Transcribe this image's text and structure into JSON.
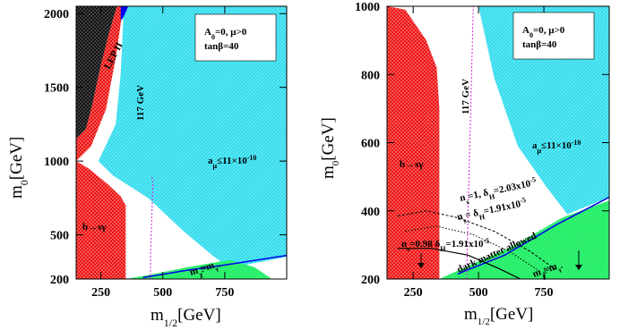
{
  "chart_data": [
    {
      "type": "area",
      "xlim": [
        150,
        1000
      ],
      "ylim": [
        200,
        2050
      ],
      "x_ticks": [
        250,
        500,
        750
      ],
      "y_ticks": [
        200,
        500,
        1000,
        1500,
        2000
      ],
      "x_tick_labels": [
        "250",
        "500",
        "750"
      ],
      "y_tick_labels": [
        "200",
        "500",
        "1000",
        "1500",
        "2000"
      ],
      "xlabel_main": "m",
      "xlabel_sub": "1/2",
      "xlabel_unit": "[GeV]",
      "ylabel_main": "m",
      "ylabel_sub": "0",
      "ylabel_unit": "[GeV]",
      "legend": {
        "line1": "A",
        "line1_sub": "0",
        "line1_rest": "=0,  μ>0",
        "line2": "tanβ=40",
        "placement": "top-right"
      },
      "colors": {
        "cyan": "#33ddee",
        "red": "#ee1111",
        "black": "#111111",
        "green": "#22ee66",
        "blue": "#0000ee",
        "magenta": "#dd22dd"
      },
      "regions": {
        "amu_cyan": [
          [
            330,
            2050
          ],
          [
            1000,
            2050
          ],
          [
            1000,
            350
          ],
          [
            770,
            275
          ],
          [
            700,
            360
          ],
          [
            580,
            530
          ],
          [
            440,
            750
          ],
          [
            300,
            900
          ],
          [
            240,
            1000
          ],
          [
            310,
            1250
          ],
          [
            330,
            1600
          ],
          [
            340,
            1950
          ]
        ],
        "stau_black": [
          [
            150,
            2050
          ],
          [
            315,
            2050
          ],
          [
            285,
            1880
          ],
          [
            250,
            1650
          ],
          [
            215,
            1380
          ],
          [
            190,
            1220
          ],
          [
            150,
            1150
          ]
        ],
        "stau_red": [
          [
            150,
            1150
          ],
          [
            190,
            1220
          ],
          [
            215,
            1380
          ],
          [
            250,
            1650
          ],
          [
            285,
            1880
          ],
          [
            315,
            2050
          ],
          [
            340,
            2050
          ],
          [
            310,
            1700
          ],
          [
            270,
            1350
          ],
          [
            210,
            1100
          ],
          [
            150,
            1000
          ]
        ],
        "bsg_red": [
          [
            150,
            1000
          ],
          [
            200,
            950
          ],
          [
            280,
            840
          ],
          [
            330,
            760
          ],
          [
            350,
            700
          ],
          [
            350,
            200
          ],
          [
            150,
            200
          ]
        ],
        "green_chargino": [
          [
            350,
            200
          ],
          [
            940,
            200
          ],
          [
            870,
            280
          ],
          [
            770,
            330
          ],
          [
            600,
            280
          ],
          [
            450,
            230
          ]
        ],
        "blue_boundary": [
          [
            420,
            210
          ],
          [
            600,
            260
          ],
          [
            770,
            300
          ],
          [
            1000,
            360
          ]
        ],
        "blue_top": [
          [
            330,
            2050
          ],
          [
            360,
            2050
          ],
          [
            345,
            1990
          ],
          [
            330,
            1950
          ]
        ],
        "higgs_line": [
          [
            450,
            200
          ],
          [
            450,
            350
          ],
          [
            455,
            600
          ],
          [
            460,
            850
          ],
          [
            455,
            900
          ]
        ]
      },
      "annotations": [
        {
          "text": "LEP II",
          "x": 235,
          "y": 1750,
          "rotate": -60
        },
        {
          "text": "117 GeV",
          "x": 420,
          "y": 1200,
          "rotate": -90
        },
        {
          "text": "b→sγ",
          "x": 170,
          "y": 600,
          "rotate": 0
        },
        {
          "text": "a",
          "sub": "μ",
          "rest": "≤11×10",
          "sup": "-10",
          "x": 810,
          "y": 900,
          "rotate": 0
        },
        {
          "text": "m",
          "sub": "χ̃",
          "rest": "≈m",
          "sub2": "τ̃",
          "x": 605,
          "y": 230,
          "rotate": -20
        }
      ]
    },
    {
      "type": "area",
      "xlim": [
        150,
        1000
      ],
      "ylim": [
        200,
        1000
      ],
      "x_ticks": [
        250,
        500,
        750
      ],
      "y_ticks": [
        200,
        400,
        600,
        800,
        1000
      ],
      "x_tick_labels": [
        "250",
        "500",
        "750"
      ],
      "y_tick_labels": [
        "200",
        "400",
        "600",
        "800",
        "1000"
      ],
      "xlabel_main": "m",
      "xlabel_sub": "1/2",
      "xlabel_unit": "[GeV]",
      "ylabel_main": "m",
      "ylabel_sub": "0",
      "ylabel_unit": "[GeV]",
      "legend": {
        "line1": "A",
        "line1_sub": "0",
        "line1_rest": "=0,  μ>0",
        "line2": "tanβ=40",
        "placement": "top-right"
      },
      "regions": {
        "amu_cyan": [
          [
            500,
            1000
          ],
          [
            1000,
            1000
          ],
          [
            1000,
            440
          ],
          [
            840,
            390
          ],
          [
            760,
            470
          ],
          [
            650,
            590
          ],
          [
            560,
            790
          ]
        ],
        "bsg_red": [
          [
            150,
            1000
          ],
          [
            220,
            990
          ],
          [
            300,
            900
          ],
          [
            340,
            820
          ],
          [
            350,
            700
          ],
          [
            350,
            200
          ],
          [
            150,
            200
          ]
        ],
        "green_chargino": [
          [
            350,
            200
          ],
          [
            1000,
            200
          ],
          [
            1000,
            430
          ],
          [
            820,
            380
          ],
          [
            640,
            300
          ],
          [
            480,
            245
          ]
        ],
        "blue_boundary": [
          [
            420,
            215
          ],
          [
            600,
            270
          ],
          [
            800,
            360
          ],
          [
            1000,
            440
          ]
        ],
        "higgs_line": [
          [
            455,
            200
          ],
          [
            460,
            400
          ],
          [
            470,
            700
          ],
          [
            480,
            1000
          ]
        ]
      },
      "curves": {
        "ns1": [
          [
            190,
            385
          ],
          [
            300,
            400
          ],
          [
            420,
            380
          ],
          [
            560,
            340
          ],
          [
            700,
            280
          ],
          [
            800,
            225
          ]
        ],
        "ns_mid": [
          [
            220,
            340
          ],
          [
            340,
            355
          ],
          [
            480,
            330
          ],
          [
            620,
            280
          ],
          [
            740,
            220
          ]
        ],
        "ns098": [
          [
            190,
            290
          ],
          [
            320,
            290
          ],
          [
            460,
            270
          ],
          [
            580,
            230
          ],
          [
            660,
            200
          ]
        ]
      },
      "annotations": [
        {
          "text": "117 GeV",
          "x": 440,
          "y": 860,
          "rotate": -90
        },
        {
          "text": "b→sγ",
          "x": 160,
          "y": 530,
          "rotate": 0
        },
        {
          "text": "a",
          "sub": "μ",
          "rest": "≤11×10",
          "sup": "-10",
          "x": 820,
          "y": 590,
          "rotate": 0
        },
        {
          "text": "n",
          "sub": "s",
          "rest": "=1,  δ",
          "sub2": "H",
          "rest2": "=2.03x10",
          "sup": "-5",
          "x": 420,
          "y": 405,
          "rotate": -12
        },
        {
          "text": "n",
          "sub": "s",
          "rest": "= δ",
          "sub2": "H",
          "rest2": "=1.91x10",
          "sup": "-5",
          "x": 420,
          "y": 360,
          "rotate": -12
        },
        {
          "text": "n",
          "sub": "s",
          "rest": "=0.98   δ",
          "sub2": "H",
          "rest2": "=1.91x10",
          "sup": "-5",
          "x": 190,
          "y": 300,
          "rotate": 0
        },
        {
          "text": "dark matter allowed",
          "x": 470,
          "y": 245,
          "rotate": -25
        },
        {
          "text": "m",
          "sub": "χ̃",
          "rest": "≈m",
          "sub2": "τ̃",
          "x": 640,
          "y": 220,
          "rotate": -20
        }
      ]
    }
  ]
}
